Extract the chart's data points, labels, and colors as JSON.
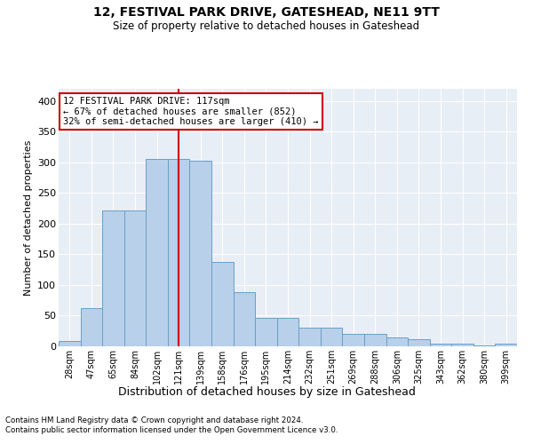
{
  "title": "12, FESTIVAL PARK DRIVE, GATESHEAD, NE11 9TT",
  "subtitle": "Size of property relative to detached houses in Gateshead",
  "xlabel": "Distribution of detached houses by size in Gateshead",
  "ylabel": "Number of detached properties",
  "categories": [
    "28sqm",
    "47sqm",
    "65sqm",
    "84sqm",
    "102sqm",
    "121sqm",
    "139sqm",
    "158sqm",
    "176sqm",
    "195sqm",
    "214sqm",
    "232sqm",
    "251sqm",
    "269sqm",
    "288sqm",
    "306sqm",
    "325sqm",
    "343sqm",
    "362sqm",
    "380sqm",
    "399sqm"
  ],
  "bar_values": [
    8,
    63,
    222,
    222,
    306,
    306,
    302,
    137,
    89,
    46,
    46,
    30,
    30,
    20,
    20,
    14,
    11,
    5,
    5,
    2,
    4
  ],
  "bar_color": "#b8d0ea",
  "bar_edge_color": "#6a9fc8",
  "vline_x_index": 5,
  "vline_color": "#cc0000",
  "annotation_line1": "12 FESTIVAL PARK DRIVE: 117sqm",
  "annotation_line2": "← 67% of detached houses are smaller (852)",
  "annotation_line3": "32% of semi-detached houses are larger (410) →",
  "annotation_box_facecolor": "#ffffff",
  "annotation_box_edgecolor": "#cc0000",
  "ylim": [
    0,
    420
  ],
  "yticks": [
    0,
    50,
    100,
    150,
    200,
    250,
    300,
    350,
    400
  ],
  "plot_bg_color": "#e8eef5",
  "fig_bg_color": "#ffffff",
  "footer1": "Contains HM Land Registry data © Crown copyright and database right 2024.",
  "footer2": "Contains public sector information licensed under the Open Government Licence v3.0."
}
